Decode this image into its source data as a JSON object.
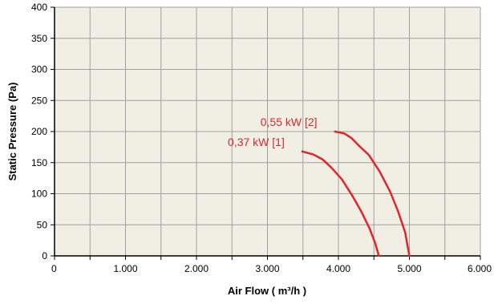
{
  "chart_data": {
    "type": "line",
    "xlabel": "Air Flow ( m³/h )",
    "ylabel": "Static Pressure (Pa)",
    "xlim": [
      0,
      6000
    ],
    "ylim": [
      0,
      400
    ],
    "x_ticks": [
      0,
      500,
      1000,
      1500,
      2000,
      2500,
      3000,
      3500,
      4000,
      4500,
      5000,
      5500,
      6000
    ],
    "x_tick_labels": [
      "0",
      "",
      "1.000",
      "",
      "2.000",
      "",
      "3.000",
      "",
      "4.000",
      "",
      "5.000",
      "",
      "6.000"
    ],
    "y_ticks": [
      0,
      50,
      100,
      150,
      200,
      250,
      300,
      350,
      400
    ],
    "y_tick_labels": [
      "0",
      "50",
      "100",
      "150",
      "200",
      "250",
      "300",
      "350",
      "400"
    ],
    "grid": true,
    "plot_background": "#f1eee4",
    "grid_color": "#a0a0a0",
    "series_color": "#e0262c",
    "series": [
      {
        "label": "0,37 kW   [1]",
        "points": [
          [
            3490,
            168
          ],
          [
            3650,
            163
          ],
          [
            3780,
            155
          ],
          [
            3900,
            142
          ],
          [
            4050,
            123
          ],
          [
            4200,
            96
          ],
          [
            4320,
            72
          ],
          [
            4440,
            44
          ],
          [
            4520,
            20
          ],
          [
            4570,
            0
          ]
        ]
      },
      {
        "label": "0,55 kW   [2]",
        "points": [
          [
            3950,
            200
          ],
          [
            4080,
            197
          ],
          [
            4180,
            190
          ],
          [
            4300,
            176
          ],
          [
            4430,
            162
          ],
          [
            4580,
            136
          ],
          [
            4730,
            103
          ],
          [
            4840,
            72
          ],
          [
            4940,
            38
          ],
          [
            5000,
            0
          ]
        ]
      }
    ]
  }
}
